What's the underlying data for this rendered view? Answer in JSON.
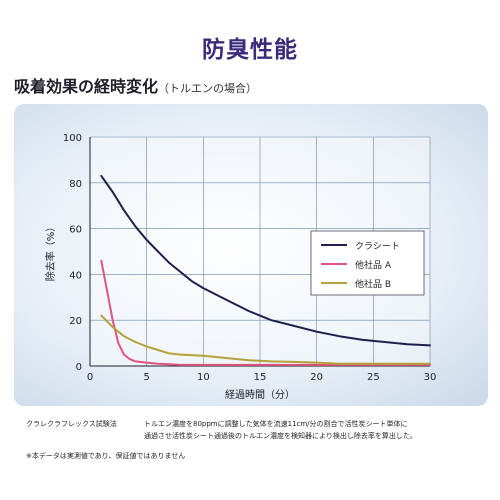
{
  "title": "防臭性能",
  "heading": {
    "main": "吸着効果の経時変化",
    "sub": "（トルエンの場合）"
  },
  "notes": {
    "method_label": "クラレクラフレックス試験法",
    "method_line1": "トルエン濃度を80ppmに調整した気体を流速11cm/分の割合で活性炭シート単体に",
    "method_line2": "通過させ活性炭シート通過後のトルエン濃度を検知器により検出し除去率を算出した。",
    "disclaimer": "※本データは実測値であり、保証値ではありません"
  },
  "chart_data": {
    "type": "line",
    "xlabel": "経過時間（分）",
    "ylabel": "除去率（%）",
    "xlim": [
      0,
      30
    ],
    "ylim": [
      0,
      100
    ],
    "xticks": [
      "0",
      "5",
      "10",
      "15",
      "20",
      "25",
      "30"
    ],
    "yticks": [
      "0",
      "20",
      "40",
      "60",
      "80",
      "100"
    ],
    "grid": true,
    "legend_position": "right",
    "series": [
      {
        "name": "クラシート",
        "color": "#1f1f4e",
        "x": [
          1,
          2,
          3,
          4,
          5,
          6,
          7,
          8,
          9,
          10,
          12,
          14,
          16,
          18,
          20,
          22,
          24,
          26,
          28,
          30
        ],
        "y": [
          83,
          76,
          68,
          61,
          55,
          50,
          45,
          41,
          37,
          34,
          29,
          24,
          20,
          17.5,
          15,
          13,
          11.5,
          10.5,
          9.5,
          9
        ]
      },
      {
        "name": "他社品 A",
        "color": "#e0557e",
        "x": [
          1,
          1.5,
          2,
          2.5,
          3,
          3.5,
          4,
          5,
          6,
          7,
          8,
          10,
          15,
          20,
          25,
          30
        ],
        "y": [
          46,
          33,
          20,
          10,
          5,
          3,
          2,
          1.5,
          1,
          0.8,
          0.5,
          0.5,
          0.5,
          0.5,
          0.5,
          0.5
        ]
      },
      {
        "name": "他社品 B",
        "color": "#b5a03b",
        "x": [
          1,
          2,
          3,
          4,
          5,
          6,
          7,
          8,
          10,
          12,
          14,
          16,
          18,
          20,
          22,
          25,
          30
        ],
        "y": [
          22,
          17,
          13,
          10.5,
          8.5,
          7,
          5.5,
          5,
          4.5,
          3.5,
          2.5,
          2,
          1.8,
          1.5,
          1,
          1,
          1
        ]
      }
    ]
  }
}
